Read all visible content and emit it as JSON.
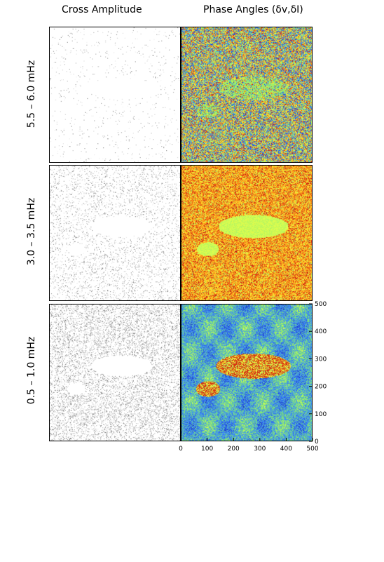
{
  "column_titles": {
    "left": "Cross Amplitude",
    "right": "Phase Angles (δv,δI)"
  },
  "row_labels": [
    "5.5 – 6.0 mHz",
    "3.0 – 3.5 mHz",
    "0.5 – 1.0 mHz"
  ],
  "chart_data": [
    {
      "type": "heatmap",
      "title": "Cross Amplitude",
      "panels": [
        "5.5 – 6.0 mHz",
        "3.0 – 3.5 mHz",
        "0.5 – 1.0 mHz"
      ],
      "colormap": "grayscale (white = low, black = high)",
      "grid": false
    },
    {
      "type": "heatmap",
      "title": "Phase Angles (δv,δI)",
      "panels": [
        "5.5 – 6.0 mHz",
        "3.0 – 3.5 mHz",
        "0.5 – 1.0 mHz"
      ],
      "colormap": "rainbow (blue – green – yellow – red)",
      "xlim": [
        0,
        500
      ],
      "ylim": [
        0,
        500
      ],
      "x_ticks": [
        0,
        100,
        200,
        300,
        400,
        500
      ],
      "y_ticks": [
        0,
        100,
        200,
        300,
        400,
        500
      ],
      "grid": false
    }
  ]
}
